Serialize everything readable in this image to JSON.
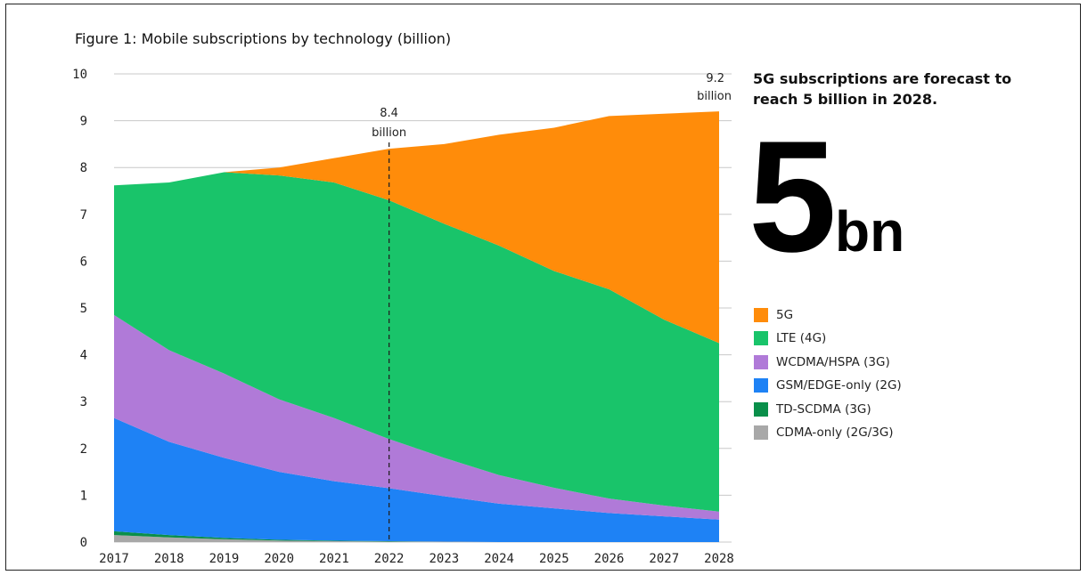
{
  "figure_title": "Figure 1: Mobile subscriptions by technology (billion)",
  "callout": {
    "headline": "5G subscriptions are forecast to reach 5 billion in 2028.",
    "big_number": "5",
    "big_unit": "bn"
  },
  "colors": {
    "5G": "#ff8c0a",
    "LTE (4G)": "#19c46a",
    "WCDMA/HSPA (3G)": "#b07ad8",
    "GSM/EDGE-only (2G)": "#1e82f5",
    "TD-SCDMA (3G)": "#0a8f4a",
    "CDMA-only (2G/3G)": "#a8a8a8"
  },
  "chart_data": {
    "type": "area",
    "stacked": true,
    "title": "Figure 1: Mobile subscriptions by technology (billion)",
    "x": [
      2017,
      2018,
      2019,
      2020,
      2021,
      2022,
      2023,
      2024,
      2025,
      2026,
      2027,
      2028
    ],
    "x_tick_labels": [
      "2017",
      "2018",
      "2019",
      "2020",
      "2021",
      "2022",
      "2023",
      "2024",
      "2025",
      "2026",
      "2027",
      "2028"
    ],
    "y_tick_labels": [
      "0",
      "1",
      "2",
      "3",
      "4",
      "5",
      "6",
      "7",
      "8",
      "9",
      "10"
    ],
    "ylim": [
      0,
      10
    ],
    "grid": "horizontal tick marks",
    "legend_position": "right",
    "series": [
      {
        "name": "CDMA-only (2G/3G)",
        "values": [
          0.15,
          0.1,
          0.06,
          0.03,
          0.02,
          0.01,
          0.01,
          0.0,
          0.0,
          0.0,
          0.0,
          0.0
        ]
      },
      {
        "name": "TD-SCDMA (3G)",
        "values": [
          0.08,
          0.05,
          0.03,
          0.02,
          0.01,
          0.01,
          0.0,
          0.0,
          0.0,
          0.0,
          0.0,
          0.0
        ]
      },
      {
        "name": "GSM/EDGE-only (2G)",
        "values": [
          2.42,
          1.99,
          1.71,
          1.45,
          1.27,
          1.13,
          0.97,
          0.82,
          0.72,
          0.62,
          0.55,
          0.48
        ]
      },
      {
        "name": "WCDMA/HSPA (3G)",
        "values": [
          2.2,
          1.96,
          1.8,
          1.55,
          1.35,
          1.05,
          0.82,
          0.61,
          0.44,
          0.31,
          0.23,
          0.17
        ]
      },
      {
        "name": "LTE (4G)",
        "values": [
          2.77,
          3.58,
          4.3,
          4.78,
          5.03,
          5.1,
          5.0,
          4.9,
          4.63,
          4.47,
          3.97,
          3.6
        ]
      },
      {
        "name": "5G",
        "values": [
          0.0,
          0.0,
          0.0,
          0.17,
          0.52,
          1.1,
          1.7,
          2.37,
          3.06,
          3.7,
          4.4,
          4.95
        ]
      }
    ],
    "annotations": [
      {
        "x": 2022,
        "value_label": "8.4",
        "unit_label": "billion",
        "style": "dashed vertical line"
      },
      {
        "x": 2028,
        "value_label": "9.2",
        "unit_label": "billion"
      }
    ]
  }
}
